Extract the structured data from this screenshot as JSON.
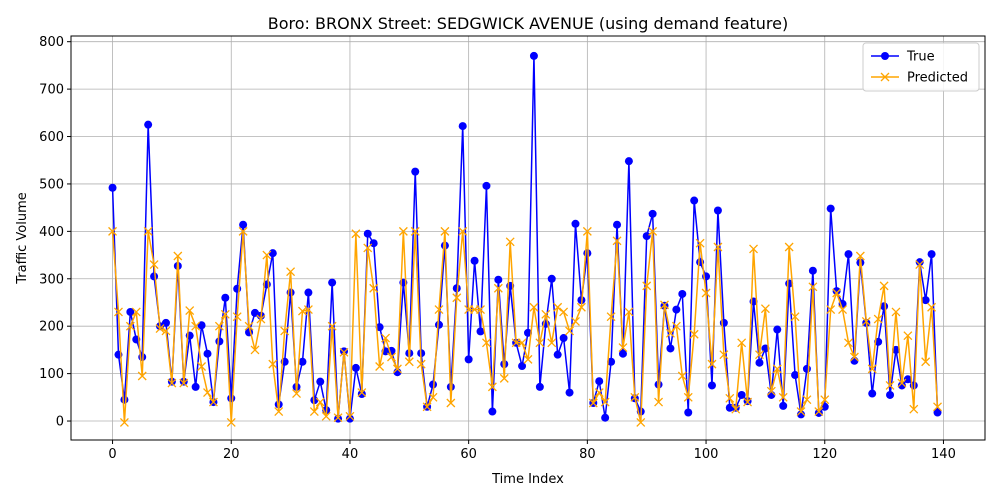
{
  "chart_data": {
    "type": "line",
    "title": "Boro: BRONX Street: SEDGWICK AVENUE (using demand feature)",
    "xlabel": "Time Index",
    "ylabel": "Traffic Volume",
    "xlim": [
      -7,
      147
    ],
    "ylim": [
      -40,
      812
    ],
    "xticks": [
      0,
      20,
      40,
      60,
      80,
      100,
      120,
      140
    ],
    "yticks": [
      0,
      100,
      200,
      300,
      400,
      500,
      600,
      700,
      800
    ],
    "grid": true,
    "legend_position": "top-right",
    "series": [
      {
        "name": "True",
        "color": "#0000ff",
        "marker": "circle",
        "values": [
          492,
          140,
          45,
          230,
          172,
          135,
          625,
          305,
          200,
          207,
          83,
          327,
          83,
          180,
          72,
          202,
          142,
          40,
          168,
          260,
          48,
          279,
          414,
          187,
          228,
          222,
          288,
          354,
          35,
          125,
          271,
          72,
          125,
          271,
          44,
          83,
          23,
          292,
          5,
          147,
          5,
          112,
          57,
          395,
          375,
          198,
          147,
          148,
          103,
          292,
          143,
          526,
          143,
          30,
          77,
          203,
          370,
          72,
          280,
          622,
          130,
          338,
          189,
          496,
          20,
          298,
          120,
          285,
          165,
          116,
          186,
          770,
          72,
          205,
          300,
          140,
          175,
          60,
          416,
          255,
          354,
          38,
          84,
          7,
          125,
          414,
          142,
          548,
          48,
          20,
          390,
          437,
          77,
          243,
          153,
          235,
          268,
          18,
          465,
          335,
          305,
          75,
          444,
          207,
          28,
          28,
          55,
          42,
          252,
          123,
          153,
          55,
          193,
          32,
          290,
          97,
          14,
          110,
          317,
          17,
          30,
          448,
          274,
          247,
          352,
          127,
          334,
          207,
          58,
          167,
          242,
          55,
          150,
          75,
          88,
          75,
          335,
          255,
          352,
          18
        ]
      },
      {
        "name": "Predicted",
        "color": "#ffa500",
        "marker": "x",
        "values": [
          400,
          230,
          -3,
          200,
          230,
          95,
          400,
          330,
          195,
          190,
          80,
          348,
          80,
          233,
          200,
          115,
          60,
          40,
          200,
          225,
          -3,
          220,
          400,
          200,
          150,
          215,
          350,
          120,
          20,
          190,
          315,
          58,
          232,
          235,
          20,
          40,
          10,
          200,
          7,
          145,
          10,
          395,
          60,
          365,
          280,
          115,
          175,
          135,
          110,
          400,
          125,
          400,
          120,
          30,
          50,
          235,
          400,
          38,
          260,
          400,
          235,
          235,
          235,
          165,
          72,
          280,
          90,
          378,
          165,
          165,
          130,
          240,
          165,
          225,
          165,
          240,
          230,
          190,
          210,
          240,
          400,
          38,
          60,
          40,
          220,
          380,
          155,
          230,
          50,
          -3,
          285,
          400,
          40,
          245,
          185,
          200,
          95,
          50,
          183,
          375,
          270,
          120,
          367,
          140,
          48,
          25,
          165,
          40,
          363,
          140,
          237,
          63,
          110,
          50,
          367,
          220,
          20,
          45,
          283,
          20,
          45,
          235,
          270,
          235,
          165,
          135,
          348,
          210,
          110,
          215,
          285,
          75,
          230,
          80,
          180,
          25,
          330,
          125,
          240,
          30
        ]
      }
    ]
  }
}
